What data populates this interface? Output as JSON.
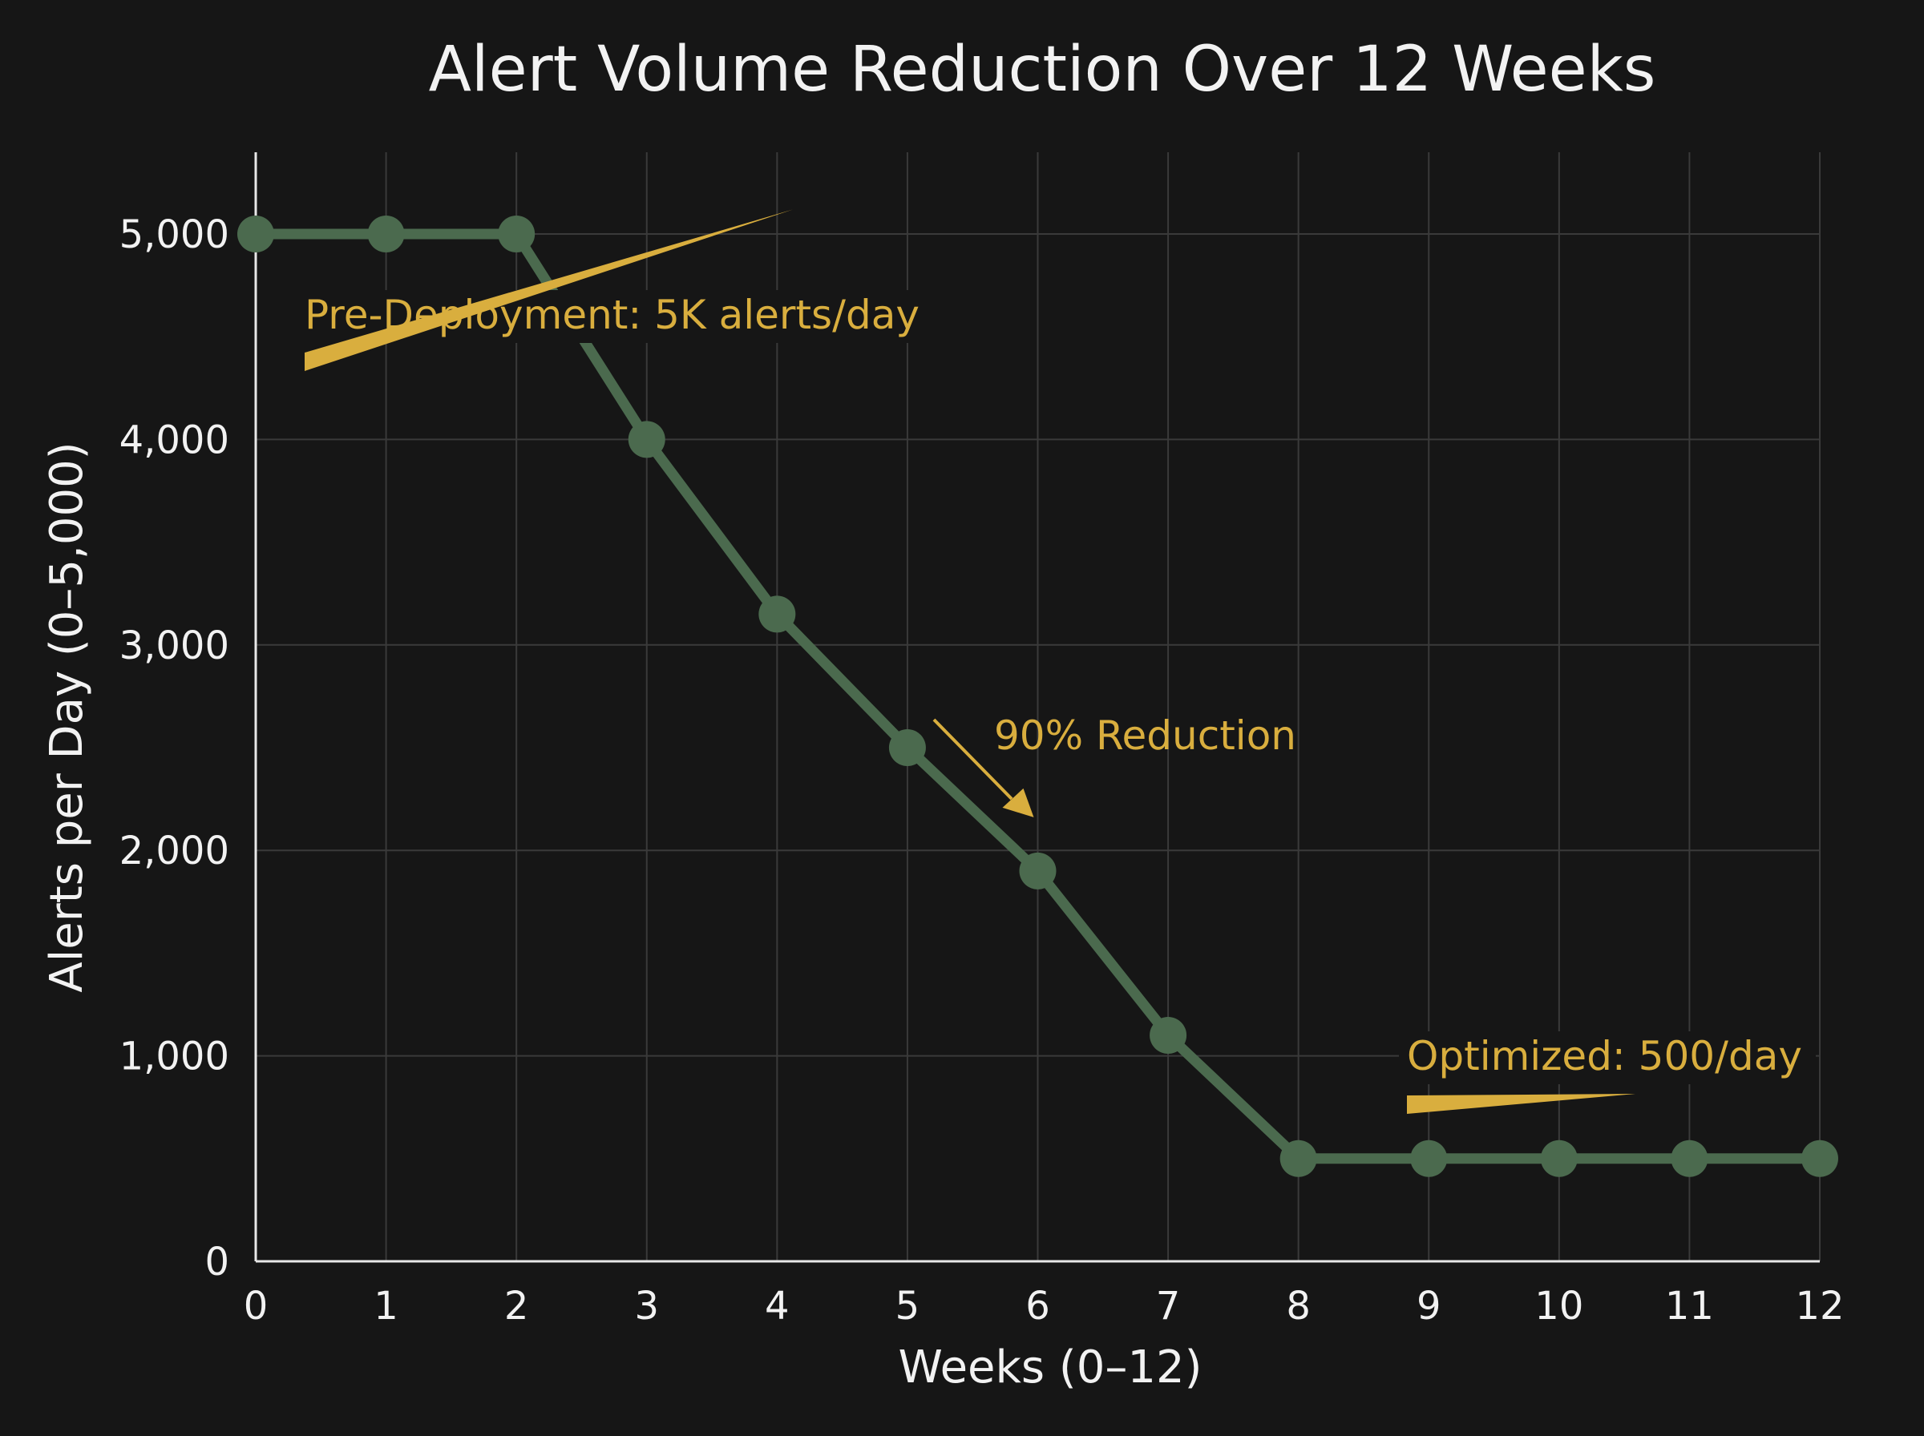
{
  "chart_data": {
    "type": "line",
    "title": "Alert Volume Reduction Over 12 Weeks",
    "xlabel": "Weeks (0–12)",
    "ylabel": "Alerts per Day (0–5,000)",
    "x": [
      0,
      1,
      2,
      3,
      4,
      5,
      6,
      7,
      8,
      9,
      10,
      11,
      12
    ],
    "x_tick_labels": [
      "0",
      "1",
      "2",
      "3",
      "4",
      "5",
      "6",
      "7",
      "8",
      "9",
      "10",
      "11",
      "12"
    ],
    "y_ticks": [
      0,
      1000,
      2000,
      3000,
      4000,
      5000
    ],
    "y_tick_labels": [
      "0",
      "1,000",
      "2,000",
      "3,000",
      "4,000",
      "5,000"
    ],
    "xlim": [
      0,
      12
    ],
    "ylim": [
      0,
      5000
    ],
    "grid": true,
    "series": [
      {
        "values": [
          5000,
          5000,
          5000,
          4000,
          3150,
          2500,
          1900,
          1100,
          500,
          500,
          500,
          500,
          500
        ],
        "color": "#4b6a4e"
      }
    ],
    "annotations": [
      {
        "text": "Pre-Deployment: 5K alerts/day",
        "x": 2,
        "y": 4550
      },
      {
        "text": "90% Reduction",
        "x": 6,
        "y": 2200
      },
      {
        "text": "Optimized: 500/day",
        "x": 10.5,
        "y": 790
      }
    ],
    "colors": {
      "background": "#161616",
      "grid": "#3a3a3a",
      "axis": "#e8e8e8",
      "text": "#f2f2f2",
      "annotation": "#d9ae3e",
      "line": "#4b6a4e"
    }
  }
}
